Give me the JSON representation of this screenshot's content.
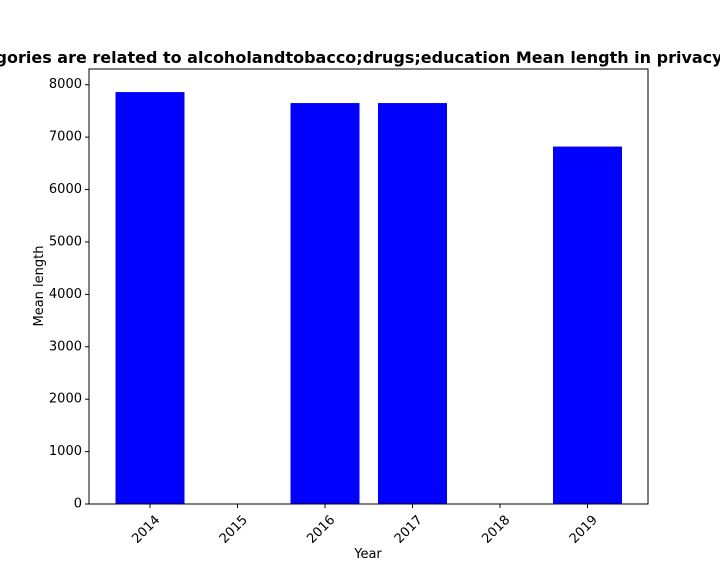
{
  "chart_data": {
    "type": "bar",
    "title": "Categories are related to alcoholandtobacco;drugs;education Mean length in privacy policy",
    "xlabel": "Year",
    "ylabel": "Mean length",
    "categories": [
      "2014",
      "2015",
      "2016",
      "2017",
      "2018",
      "2019"
    ],
    "values": [
      7860,
      null,
      7650,
      7650,
      null,
      6820
    ],
    "ylim": [
      0,
      8300
    ],
    "yticks": [
      0,
      1000,
      2000,
      3000,
      4000,
      5000,
      6000,
      7000,
      8000
    ],
    "grid": false,
    "legend": "none",
    "bar_color": "#0000ff"
  }
}
